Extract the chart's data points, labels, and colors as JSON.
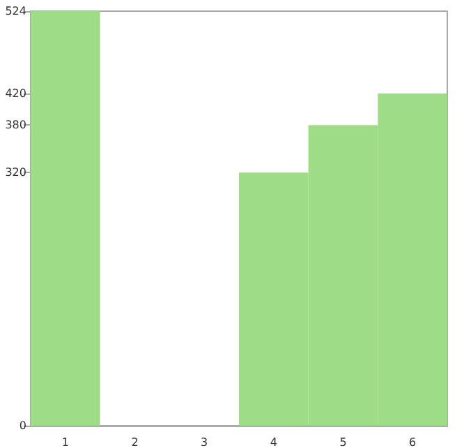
{
  "chart_data": {
    "type": "bar",
    "categories": [
      "1",
      "2",
      "3",
      "4",
      "5",
      "6"
    ],
    "values": [
      524,
      0,
      0,
      320,
      380,
      420
    ],
    "color": "#9edc86",
    "ylim": [
      0,
      524
    ],
    "yticks": [
      0,
      320,
      380,
      420,
      524
    ],
    "grid": false
  }
}
